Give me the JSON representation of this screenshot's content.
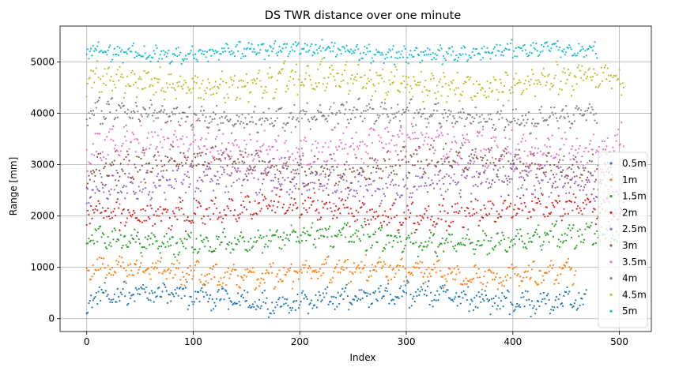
{
  "chart_data": {
    "type": "scatter",
    "title": "DS TWR distance over one minute",
    "xlabel": "Index",
    "ylabel": "Range [mm]",
    "xlim": [
      -25,
      530
    ],
    "ylim": [
      -250,
      5700
    ],
    "xticks": [
      0,
      100,
      200,
      300,
      400,
      500
    ],
    "yticks": [
      0,
      1000,
      2000,
      3000,
      4000,
      5000
    ],
    "grid": true,
    "legend_position": "lower-right",
    "series": [
      {
        "name": "0.5m",
        "color": "#1f77b4",
        "n": 470,
        "center": 400,
        "spread": 350
      },
      {
        "name": "1m",
        "color": "#ff7f0e",
        "n": 460,
        "center": 900,
        "spread": 350
      },
      {
        "name": "1.5m",
        "color": "#2ca02c",
        "n": 500,
        "center": 1550,
        "spread": 350
      },
      {
        "name": "2m",
        "color": "#d62728",
        "n": 505,
        "center": 2100,
        "spread": 400
      },
      {
        "name": "2.5m",
        "color": "#9467bd",
        "n": 505,
        "center": 2650,
        "spread": 450
      },
      {
        "name": "3m",
        "color": "#8c564b",
        "n": 495,
        "center": 3000,
        "spread": 450
      },
      {
        "name": "3.5m",
        "color": "#e377c2",
        "n": 505,
        "center": 3350,
        "spread": 550
      },
      {
        "name": "4m",
        "color": "#7f7f7f",
        "n": 480,
        "center": 3950,
        "spread": 350
      },
      {
        "name": "4.5m",
        "color": "#bcbd22",
        "n": 505,
        "center": 4600,
        "spread": 450
      },
      {
        "name": "5m",
        "color": "#17becf",
        "n": 480,
        "center": 5200,
        "spread": 250
      }
    ]
  }
}
